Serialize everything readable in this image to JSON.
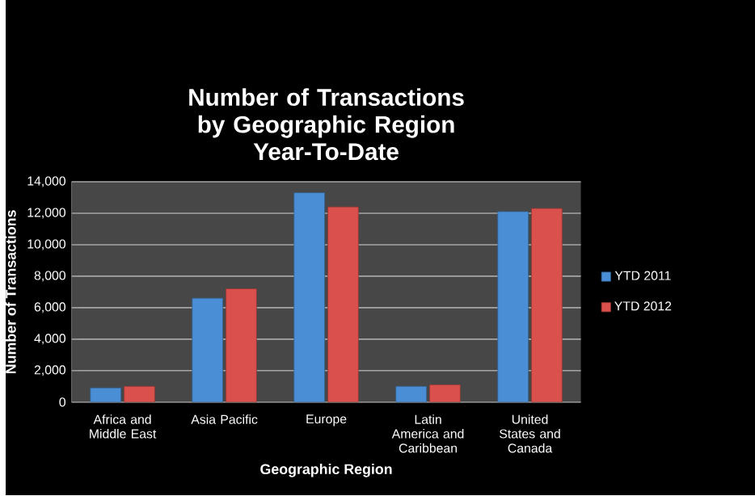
{
  "chart_data": {
    "type": "bar",
    "title": "Number of Transactions\nby Geographic Region\nYear-To-Date",
    "xlabel": "Geographic Region",
    "ylabel": "Number of Transactions",
    "categories": [
      "Africa and Middle East",
      "Asia Pacific",
      "Europe",
      "Latin America and Caribbean",
      "United States and Canada"
    ],
    "series": [
      {
        "name": "YTD 2011",
        "color": "#4a8fd6",
        "values": [
          900,
          6600,
          13300,
          1000,
          12100
        ]
      },
      {
        "name": "YTD 2012",
        "color": "#d9504c",
        "values": [
          1000,
          7200,
          12400,
          1100,
          12300
        ]
      }
    ],
    "ylim": [
      0,
      14000
    ],
    "yticks": [
      {
        "value": 0,
        "label": "0"
      },
      {
        "value": 2000,
        "label": "2,000"
      },
      {
        "value": 4000,
        "label": "4,000"
      },
      {
        "value": 6000,
        "label": "6,000"
      },
      {
        "value": 8000,
        "label": "8,000"
      },
      {
        "value": 10000,
        "label": "10,000"
      },
      {
        "value": 12000,
        "label": "12,000"
      },
      {
        "value": 14000,
        "label": "14,000"
      }
    ],
    "grid": "y",
    "legend": "right"
  }
}
